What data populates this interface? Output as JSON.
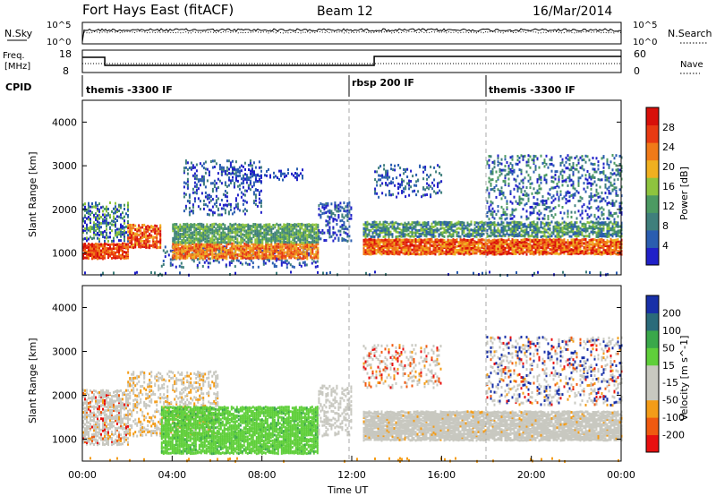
{
  "header": {
    "title": "Fort Hays East (fitACF)",
    "beam": "Beam 12",
    "date": "16/Mar/2014"
  },
  "noise_panel": {
    "left_label": "N.Sky",
    "left_ticks": [
      "10^5",
      "10^0"
    ],
    "right_label": "N.Search",
    "right_ticks": [
      "10^5",
      "10^0"
    ]
  },
  "freq_panel": {
    "left_label_1": "Freq.",
    "left_label_2": "[MHz]",
    "left_ticks": [
      "18",
      "8"
    ],
    "right_label": "Nave",
    "right_ticks": [
      "60",
      "0"
    ]
  },
  "cpid": {
    "label": "CPID",
    "segments": [
      "themis -3300 IF",
      "rbsp 200 IF",
      "themis -3300 IF"
    ]
  },
  "colors": {
    "power": [
      "#2020c8",
      "#2a5db0",
      "#3f7f7c",
      "#4c9a62",
      "#8ec43e",
      "#f0b020",
      "#f07a18",
      "#e83a12",
      "#d8100a"
    ],
    "velocity_neg": [
      "#e81010",
      "#f05a10",
      "#f39c18"
    ],
    "velocity_low": "#c8c8c0",
    "velocity_pos": [
      "#5fcf3a",
      "#3aa84a",
      "#2a6b7a",
      "#1830a8"
    ]
  },
  "chart_data": [
    {
      "type": "heatmap",
      "name": "power",
      "xlabel": "",
      "ylabel": "Slant Range [km]",
      "yticks": [
        "1000",
        "2000",
        "3000",
        "4000"
      ],
      "ylim": [
        500,
        4500
      ],
      "xlim": [
        "00:00",
        "24:00"
      ],
      "colorbar_label": "Power [dB]",
      "colorbar_ticks": [
        "4",
        "8",
        "12",
        "16",
        "20",
        "24",
        "28"
      ],
      "colorbar_range": [
        0,
        30
      ]
    },
    {
      "type": "heatmap",
      "name": "velocity",
      "xlabel": "Time UT",
      "ylabel": "Slant Range [km]",
      "yticks": [
        "1000",
        "2000",
        "3000",
        "4000"
      ],
      "ylim": [
        500,
        4500
      ],
      "xlim": [
        "00:00",
        "24:00"
      ],
      "xticks": [
        "00:00",
        "04:00",
        "08:00",
        "12:00",
        "16:00",
        "20:00",
        "00:00"
      ],
      "colorbar_label": "Velocity [m s^-1]",
      "colorbar_ticks": [
        "200",
        "100",
        "50",
        "15",
        "-15",
        "-50",
        "-100",
        "-200"
      ],
      "colorbar_range": [
        -250,
        250
      ]
    }
  ]
}
